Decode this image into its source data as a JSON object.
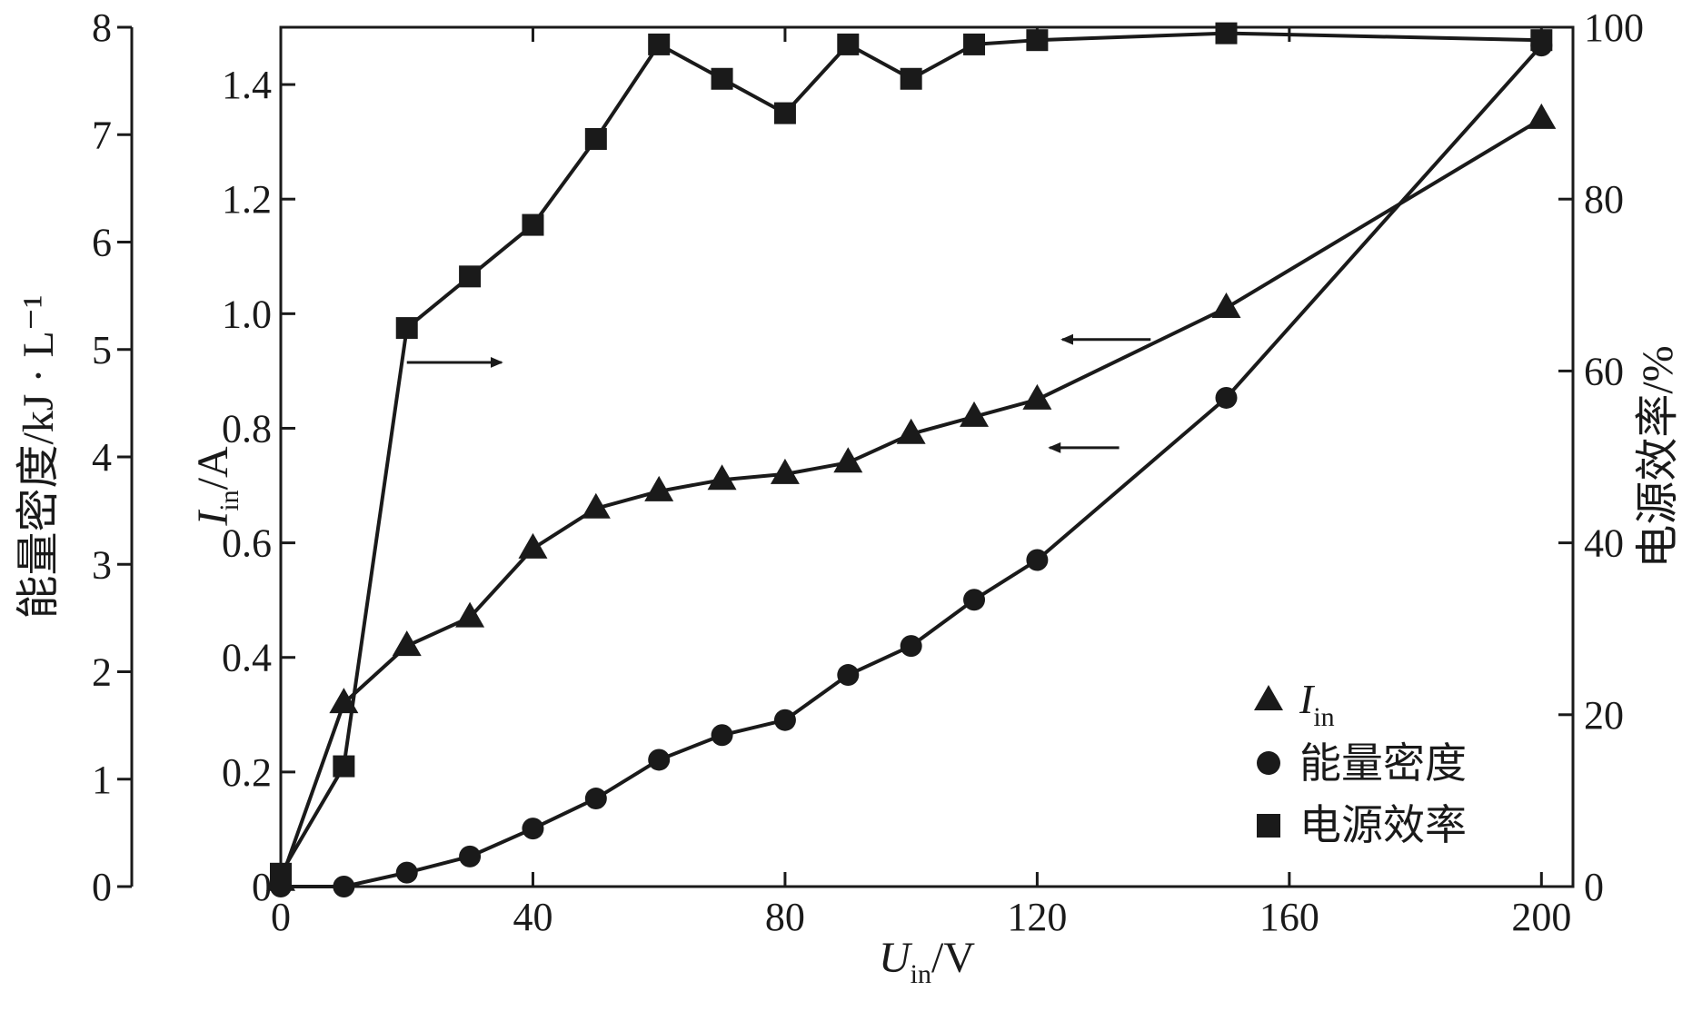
{
  "chart_data": {
    "type": "line",
    "x_axis": {
      "label_main": "U",
      "label_sub": "in",
      "label_unit": "/V",
      "range": [
        0,
        205
      ],
      "ticks": [
        0,
        40,
        80,
        120,
        160,
        200
      ],
      "tick_labels": [
        "0",
        "40",
        "80",
        "120",
        "160",
        "200"
      ]
    },
    "y_left_outer": {
      "label": "能量密度/kJ · L⁻¹",
      "range": [
        0,
        8
      ],
      "ticks": [
        0,
        1,
        2,
        3,
        4,
        5,
        6,
        7,
        8
      ],
      "tick_labels": [
        "0",
        "1",
        "2",
        "3",
        "4",
        "5",
        "6",
        "7",
        "8"
      ]
    },
    "y_left_inner": {
      "label_main": "I",
      "label_sub": "in",
      "label_unit": "/A",
      "range": [
        0,
        1.5
      ],
      "ticks": [
        0,
        0.2,
        0.4,
        0.6,
        0.8,
        1.0,
        1.2,
        1.4
      ],
      "tick_labels": [
        "0",
        "0.2",
        "0.4",
        "0.6",
        "0.8",
        "1.0",
        "1.2",
        "1.4"
      ]
    },
    "y_right": {
      "label": "电源效率/%",
      "range": [
        0,
        100
      ],
      "ticks": [
        0,
        20,
        40,
        60,
        80,
        100
      ],
      "tick_labels": [
        "0",
        "20",
        "40",
        "60",
        "80",
        "100"
      ]
    },
    "series": [
      {
        "legend_main": "I",
        "legend_sub": "in",
        "axis": "y_left_inner",
        "marker": "triangle",
        "x": [
          0,
          10,
          20,
          30,
          40,
          50,
          60,
          70,
          80,
          90,
          100,
          110,
          120,
          150,
          200
        ],
        "y": [
          0.01,
          0.32,
          0.42,
          0.47,
          0.59,
          0.66,
          0.69,
          0.71,
          0.72,
          0.74,
          0.79,
          0.82,
          0.85,
          1.01,
          1.34
        ]
      },
      {
        "legend_label": "能量密度",
        "axis": "y_left_outer",
        "marker": "circle",
        "x": [
          0,
          10,
          20,
          30,
          40,
          50,
          60,
          70,
          80,
          90,
          100,
          110,
          120,
          150,
          200
        ],
        "y": [
          0.0,
          0.0,
          0.13,
          0.28,
          0.54,
          0.82,
          1.18,
          1.41,
          1.55,
          1.97,
          2.24,
          2.67,
          3.04,
          4.55,
          7.83
        ]
      },
      {
        "legend_label": "电源效率",
        "axis": "y_right",
        "marker": "square",
        "x": [
          0,
          10,
          20,
          30,
          40,
          50,
          60,
          70,
          80,
          90,
          100,
          110,
          120,
          150,
          200
        ],
        "y": [
          1.5,
          14,
          65,
          71,
          77,
          87,
          98,
          94,
          90,
          98,
          94,
          98,
          98.5,
          99.3,
          98.5
        ]
      }
    ],
    "annotations": [
      {
        "type": "arrow",
        "direction": "right",
        "x_from": 20,
        "x_to": 35,
        "at_y": 61,
        "axis": "y_right"
      },
      {
        "type": "arrow",
        "direction": "left",
        "x_from": 138,
        "x_to": 124,
        "at_y": 0.955,
        "axis": "y_left_inner"
      },
      {
        "type": "arrow",
        "direction": "left",
        "x_from": 133,
        "x_to": 122,
        "at_y": 0.766,
        "axis": "y_left_inner"
      }
    ],
    "legend_position": "bottom-right",
    "grid": false
  },
  "colors": {
    "ink": "#1a1a1a",
    "background": "#ffffff"
  }
}
